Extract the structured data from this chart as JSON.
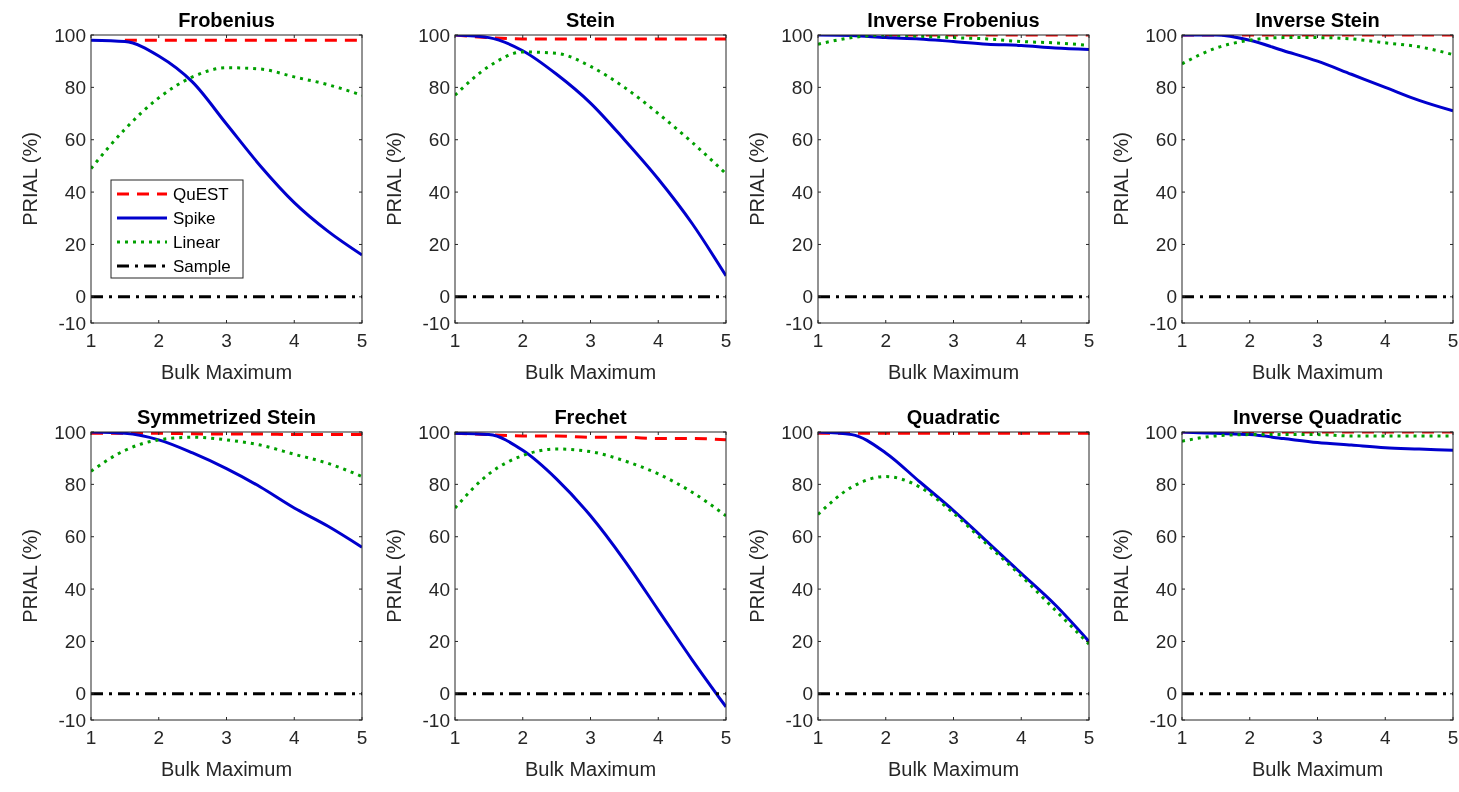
{
  "chart_data": [
    {
      "type": "line",
      "title": "Frobenius",
      "xlabel": "Bulk Maximum",
      "ylabel": "PRIAL (%)",
      "x": [
        1,
        1.5,
        2,
        2.5,
        3,
        3.5,
        4,
        4.5,
        5
      ],
      "xlim": [
        1,
        5
      ],
      "xticks": [
        1,
        2,
        3,
        4,
        5
      ],
      "ylim": [
        -10,
        100
      ],
      "yticks": [
        -10,
        0,
        20,
        40,
        60,
        80,
        100
      ],
      "legend": "left",
      "series": [
        {
          "name": "QuEST",
          "color": "#ff0000",
          "line_style": "dashed",
          "values": [
            null,
            98,
            98,
            98,
            98,
            98,
            98,
            98,
            98
          ]
        },
        {
          "name": "Spike",
          "color": "#0000cd",
          "line_style": "solid",
          "values": [
            98,
            97.5,
            92,
            82,
            66,
            50,
            36,
            25,
            16
          ]
        },
        {
          "name": "Linear",
          "color": "#00a000",
          "line_style": "dotted",
          "values": [
            49,
            64,
            76,
            84,
            87.5,
            87,
            84,
            81,
            77
          ]
        },
        {
          "name": "Sample",
          "color": "#000000",
          "line_style": "dashdot",
          "values": [
            0,
            0,
            0,
            0,
            0,
            0,
            0,
            0,
            0
          ]
        }
      ]
    },
    {
      "type": "line",
      "title": "Stein",
      "xlabel": "Bulk Maximum",
      "ylabel": "PRIAL (%)",
      "x": [
        1,
        1.5,
        2,
        2.5,
        3,
        3.5,
        4,
        4.5,
        5
      ],
      "xlim": [
        1,
        5
      ],
      "xticks": [
        1,
        2,
        3,
        4,
        5
      ],
      "ylim": [
        -10,
        100
      ],
      "yticks": [
        -10,
        0,
        20,
        40,
        60,
        80,
        100
      ],
      "series": [
        {
          "color": "#ff0000",
          "line_style": "dashed",
          "values": [
            100,
            99,
            98.5,
            98.5,
            98.5,
            98.5,
            98.5,
            98.5,
            98.5
          ]
        },
        {
          "color": "#0000cd",
          "line_style": "solid",
          "values": [
            100,
            99,
            94,
            85,
            74,
            60,
            45,
            28,
            8
          ]
        },
        {
          "color": "#00a000",
          "line_style": "dotted",
          "values": [
            77,
            88,
            93.5,
            93,
            88,
            80,
            70,
            59,
            47
          ]
        },
        {
          "color": "#000000",
          "line_style": "dashdot",
          "values": [
            0,
            0,
            0,
            0,
            0,
            0,
            0,
            0,
            0
          ]
        }
      ]
    },
    {
      "type": "line",
      "title": "Inverse Frobenius",
      "xlabel": "Bulk Maximum",
      "ylabel": "PRIAL (%)",
      "x": [
        1,
        1.5,
        2,
        2.5,
        3,
        3.5,
        4,
        4.5,
        5
      ],
      "xlim": [
        1,
        5
      ],
      "xticks": [
        1,
        2,
        3,
        4,
        5
      ],
      "ylim": [
        -10,
        100
      ],
      "yticks": [
        -10,
        0,
        20,
        40,
        60,
        80,
        100
      ],
      "series": [
        {
          "color": "#ff0000",
          "line_style": "dashed",
          "values": [
            null,
            null,
            100,
            100,
            100,
            100,
            100,
            100,
            100
          ]
        },
        {
          "color": "#0000cd",
          "line_style": "solid",
          "values": [
            100,
            99.8,
            99,
            98.5,
            97.5,
            96.5,
            96,
            95,
            94.5
          ]
        },
        {
          "color": "#00a000",
          "line_style": "dotted",
          "values": [
            96.5,
            99,
            100,
            99.5,
            99,
            98.5,
            97.5,
            97,
            96
          ]
        },
        {
          "color": "#000000",
          "line_style": "dashdot",
          "values": [
            0,
            0,
            0,
            0,
            0,
            0,
            0,
            0,
            0
          ]
        }
      ]
    },
    {
      "type": "line",
      "title": "Inverse Stein",
      "xlabel": "Bulk Maximum",
      "ylabel": "PRIAL (%)",
      "x": [
        1,
        1.5,
        2,
        2.5,
        3,
        3.5,
        4,
        4.5,
        5
      ],
      "xlim": [
        1,
        5
      ],
      "xticks": [
        1,
        2,
        3,
        4,
        5
      ],
      "ylim": [
        -10,
        100
      ],
      "yticks": [
        -10,
        0,
        20,
        40,
        60,
        80,
        100
      ],
      "series": [
        {
          "color": "#ff0000",
          "line_style": "dashed",
          "values": [
            100,
            null,
            100,
            100,
            100,
            100,
            100,
            100,
            100
          ]
        },
        {
          "color": "#0000cd",
          "line_style": "solid",
          "values": [
            100,
            100,
            98,
            94,
            90,
            85,
            80,
            75,
            71
          ]
        },
        {
          "color": "#00a000",
          "line_style": "dotted",
          "values": [
            89,
            95,
            98,
            99,
            99,
            98.5,
            97,
            95.5,
            92.5
          ]
        },
        {
          "color": "#000000",
          "line_style": "dashdot",
          "values": [
            0,
            0,
            0,
            0,
            0,
            0,
            0,
            0,
            0
          ]
        }
      ]
    },
    {
      "type": "line",
      "title": "Symmetrized Stein",
      "xlabel": "Bulk Maximum",
      "ylabel": "PRIAL (%)",
      "x": [
        1,
        1.5,
        2,
        2.5,
        3,
        3.5,
        4,
        4.5,
        5
      ],
      "xlim": [
        1,
        5
      ],
      "xticks": [
        1,
        2,
        3,
        4,
        5
      ],
      "ylim": [
        -10,
        100
      ],
      "yticks": [
        -10,
        0,
        20,
        40,
        60,
        80,
        100
      ],
      "series": [
        {
          "color": "#ff0000",
          "line_style": "dashed",
          "values": [
            99.5,
            99.5,
            99.5,
            99.3,
            99.2,
            99.2,
            99,
            99,
            99
          ]
        },
        {
          "color": "#0000cd",
          "line_style": "solid",
          "values": [
            100,
            99.5,
            97,
            92,
            86,
            79,
            71,
            64,
            56
          ]
        },
        {
          "color": "#00a000",
          "line_style": "dotted",
          "values": [
            85,
            93,
            97,
            98,
            97,
            95,
            91.5,
            88,
            83
          ]
        },
        {
          "color": "#000000",
          "line_style": "dashdot",
          "values": [
            0,
            0,
            0,
            0,
            0,
            0,
            0,
            0,
            0
          ]
        }
      ]
    },
    {
      "type": "line",
      "title": "Frechet",
      "xlabel": "Bulk Maximum",
      "ylabel": "PRIAL (%)",
      "x": [
        1,
        1.5,
        2,
        2.5,
        3,
        3.5,
        4,
        4.5,
        5
      ],
      "xlim": [
        1,
        5
      ],
      "xticks": [
        1,
        2,
        3,
        4,
        5
      ],
      "ylim": [
        -10,
        100
      ],
      "yticks": [
        -10,
        0,
        20,
        40,
        60,
        80,
        100
      ],
      "series": [
        {
          "color": "#ff0000",
          "line_style": "dashed",
          "values": [
            99.5,
            99,
            98.5,
            98.5,
            98,
            98,
            97.5,
            97.5,
            97
          ]
        },
        {
          "color": "#0000cd",
          "line_style": "solid",
          "values": [
            99.5,
            99,
            93,
            82,
            68,
            51,
            32,
            13,
            -5
          ]
        },
        {
          "color": "#00a000",
          "line_style": "dotted",
          "values": [
            71,
            84,
            91,
            93.5,
            92.5,
            89,
            84,
            77,
            68
          ]
        },
        {
          "color": "#000000",
          "line_style": "dashdot",
          "values": [
            0,
            0,
            0,
            0,
            0,
            0,
            0,
            0,
            0
          ]
        }
      ]
    },
    {
      "type": "line",
      "title": "Quadratic",
      "xlabel": "Bulk Maximum",
      "ylabel": "PRIAL (%)",
      "x": [
        1,
        1.5,
        2,
        2.5,
        3,
        3.5,
        4,
        4.5,
        5
      ],
      "xlim": [
        1,
        5
      ],
      "xticks": [
        1,
        2,
        3,
        4,
        5
      ],
      "ylim": [
        -10,
        100
      ],
      "yticks": [
        -10,
        0,
        20,
        40,
        60,
        80,
        100
      ],
      "series": [
        {
          "color": "#ff0000",
          "line_style": "dashed",
          "values": [
            99.5,
            99.5,
            99.5,
            99.5,
            99.5,
            99.5,
            99.5,
            99.5,
            99.5
          ]
        },
        {
          "color": "#0000cd",
          "line_style": "solid",
          "values": [
            100,
            99,
            92,
            81,
            70,
            58,
            46,
            34,
            20
          ]
        },
        {
          "color": "#00a000",
          "line_style": "dotted",
          "values": [
            68.5,
            79,
            83,
            79,
            69,
            57,
            45,
            32,
            19
          ]
        },
        {
          "color": "#000000",
          "line_style": "dashdot",
          "values": [
            0,
            0,
            0,
            0,
            0,
            0,
            0,
            0,
            0
          ]
        }
      ]
    },
    {
      "type": "line",
      "title": "Inverse Quadratic",
      "xlabel": "Bulk Maximum",
      "ylabel": "PRIAL (%)",
      "x": [
        1,
        1.5,
        2,
        2.5,
        3,
        3.5,
        4,
        4.5,
        5
      ],
      "xlim": [
        1,
        5
      ],
      "xticks": [
        1,
        2,
        3,
        4,
        5
      ],
      "ylim": [
        -10,
        100
      ],
      "yticks": [
        -10,
        0,
        20,
        40,
        60,
        80,
        100
      ],
      "series": [
        {
          "color": "#ff0000",
          "line_style": "dashed",
          "values": [
            100,
            null,
            100,
            100,
            100,
            100,
            100,
            100,
            100
          ]
        },
        {
          "color": "#0000cd",
          "line_style": "solid",
          "values": [
            100,
            99.5,
            99,
            97.5,
            96,
            95,
            94,
            93.5,
            93
          ]
        },
        {
          "color": "#00a000",
          "line_style": "dotted",
          "values": [
            96.5,
            98.5,
            99,
            99,
            99,
            98.5,
            98.5,
            98.5,
            98.5
          ]
        },
        {
          "color": "#000000",
          "line_style": "dashdot",
          "values": [
            0,
            0,
            0,
            0,
            0,
            0,
            0,
            0,
            0
          ]
        }
      ]
    }
  ]
}
